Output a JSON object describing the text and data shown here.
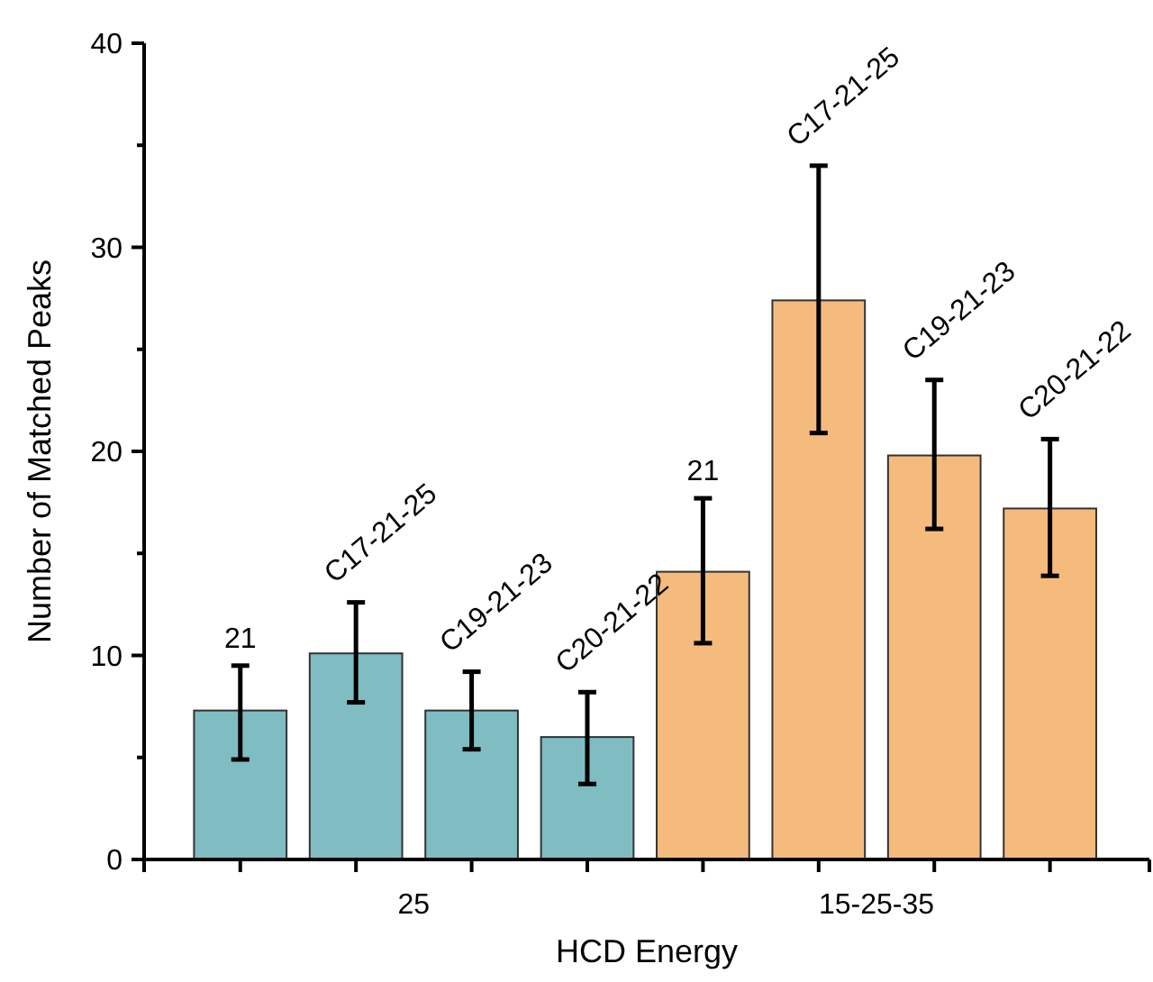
{
  "chart_data": {
    "type": "bar",
    "xlabel": "HCD Energy",
    "ylabel": "Number of Matched Peaks",
    "categories": [
      null,
      null,
      null,
      null,
      null,
      null,
      null,
      null
    ],
    "values": [
      7.3,
      10.1,
      7.3,
      6.0,
      14.1,
      27.4,
      19.8,
      17.2
    ],
    "colors": [
      "#7fbdc3",
      "#7fbdc3",
      "#7fbdc3",
      "#7fbdc3",
      "#f5bb7c",
      "#f5bb7c",
      "#f5bb7c",
      "#f5bb7c"
    ],
    "errors": [
      [
        4.9,
        9.5
      ],
      [
        7.7,
        12.6
      ],
      [
        5.4,
        9.2
      ],
      [
        3.7,
        8.2
      ],
      [
        10.6,
        17.7
      ],
      [
        20.9,
        34.0
      ],
      [
        16.2,
        23.5
      ],
      [
        13.9,
        20.6
      ]
    ],
    "annotations": [
      "21",
      "C17-21-25",
      "C19-21-23",
      "C20-21-22",
      "21",
      "C17-21-25",
      "C19-21-23",
      "C20-21-22",
      "25",
      "15-25-35"
    ],
    "ylim": [
      0,
      40
    ],
    "yticks": [
      0,
      {
        "value": 5,
        "label": null
      },
      10,
      {
        "value": 15,
        "label": null
      },
      20,
      {
        "value": 25,
        "label": null
      },
      30,
      {
        "value": 35,
        "label": null
      },
      40
    ],
    "grid": false
  }
}
